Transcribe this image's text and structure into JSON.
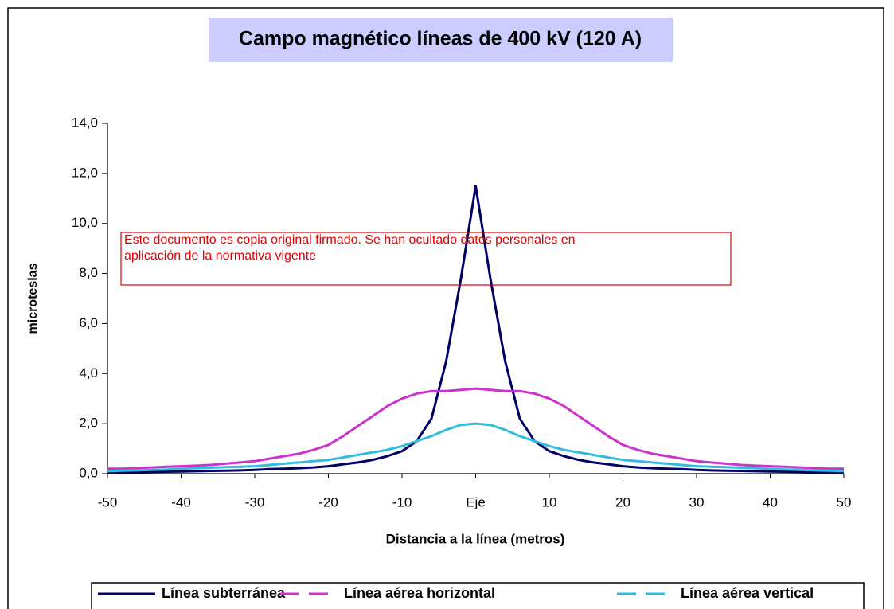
{
  "chart_data": {
    "type": "line",
    "title": "Campo magnético líneas de 400 kV (120 A)",
    "xlabel": "Distancia a la línea (metros)",
    "ylabel": "microteslas",
    "annotation": [
      "Este documento es copia original firmado. Se han ocultado datos personales en",
      "aplicación de la normativa vigente"
    ],
    "x": [
      -50,
      -48,
      -46,
      -44,
      -42,
      -40,
      -38,
      -36,
      -34,
      -32,
      -30,
      -28,
      -26,
      -24,
      -22,
      -20,
      -18,
      -16,
      -14,
      -12,
      -10,
      -8,
      -6,
      -4,
      -2,
      0,
      2,
      4,
      6,
      8,
      10,
      12,
      14,
      16,
      18,
      20,
      22,
      24,
      26,
      28,
      30,
      32,
      34,
      36,
      38,
      40,
      42,
      44,
      46,
      48,
      50
    ],
    "series": [
      {
        "name": "Línea subterránea",
        "color": "#000066",
        "dashed": false,
        "values": [
          0.05,
          0.05,
          0.06,
          0.07,
          0.08,
          0.09,
          0.1,
          0.11,
          0.12,
          0.13,
          0.15,
          0.18,
          0.2,
          0.22,
          0.25,
          0.3,
          0.38,
          0.45,
          0.55,
          0.7,
          0.9,
          1.3,
          2.2,
          4.5,
          7.8,
          11.5,
          7.8,
          4.5,
          2.2,
          1.3,
          0.9,
          0.7,
          0.55,
          0.45,
          0.38,
          0.3,
          0.25,
          0.22,
          0.2,
          0.18,
          0.15,
          0.13,
          0.12,
          0.11,
          0.1,
          0.09,
          0.08,
          0.07,
          0.06,
          0.05,
          0.05
        ]
      },
      {
        "name": "Línea aérea horizontal",
        "color": "#cc33cc",
        "dashed": true,
        "values": [
          0.2,
          0.2,
          0.22,
          0.25,
          0.28,
          0.3,
          0.32,
          0.35,
          0.4,
          0.45,
          0.5,
          0.6,
          0.7,
          0.8,
          0.95,
          1.15,
          1.5,
          1.9,
          2.3,
          2.7,
          3.0,
          3.2,
          3.3,
          3.3,
          3.35,
          3.4,
          3.35,
          3.3,
          3.3,
          3.2,
          3.0,
          2.7,
          2.3,
          1.9,
          1.5,
          1.15,
          0.95,
          0.8,
          0.7,
          0.6,
          0.5,
          0.45,
          0.4,
          0.35,
          0.32,
          0.3,
          0.28,
          0.25,
          0.22,
          0.2,
          0.2
        ]
      },
      {
        "name": "Línea aérea vertical",
        "color": "#33bbdd",
        "dashed": true,
        "values": [
          0.1,
          0.12,
          0.13,
          0.15,
          0.17,
          0.2,
          0.22,
          0.24,
          0.26,
          0.28,
          0.3,
          0.35,
          0.4,
          0.45,
          0.5,
          0.55,
          0.65,
          0.75,
          0.85,
          0.95,
          1.1,
          1.3,
          1.5,
          1.75,
          1.95,
          2.0,
          1.95,
          1.75,
          1.5,
          1.3,
          1.1,
          0.95,
          0.85,
          0.75,
          0.65,
          0.55,
          0.5,
          0.45,
          0.4,
          0.35,
          0.3,
          0.28,
          0.26,
          0.24,
          0.22,
          0.2,
          0.17,
          0.15,
          0.13,
          0.12,
          0.1
        ]
      }
    ],
    "xlim": [
      -50,
      50
    ],
    "xticks": [
      -50,
      -40,
      -30,
      -20,
      -10,
      {
        "value": 0,
        "label": "Eje"
      },
      10,
      20,
      30,
      40,
      50
    ],
    "ylim": [
      0,
      14
    ],
    "yticks": [
      {
        "value": 0,
        "label": "0,0"
      },
      {
        "value": 2,
        "label": "2,0"
      },
      {
        "value": 4,
        "label": "4,0"
      },
      {
        "value": 6,
        "label": "6,0"
      },
      {
        "value": 8,
        "label": "8,0"
      },
      {
        "value": 10,
        "label": "10,0"
      },
      {
        "value": 12,
        "label": "12,0"
      },
      {
        "value": 14,
        "label": "14,0"
      }
    ],
    "grid": false,
    "legend": "bottom"
  }
}
